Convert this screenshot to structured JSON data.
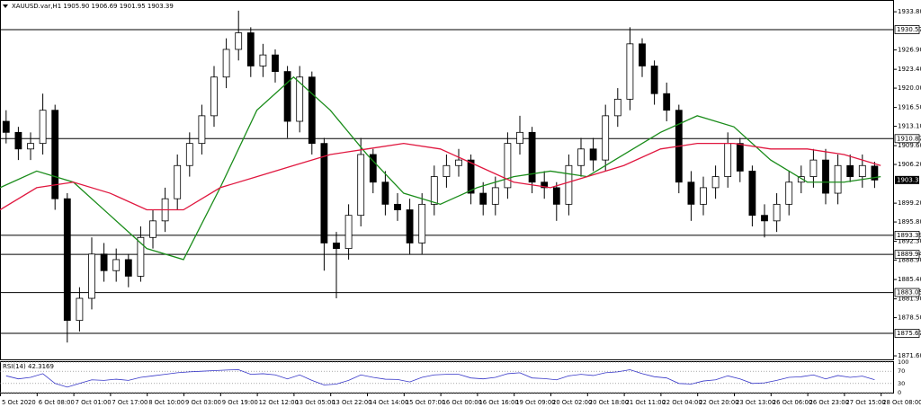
{
  "chart_data": {
    "type": "candlestick",
    "header": "XAUUSD.var,H1 1905.90 1906.69 1901.95 1903.39",
    "up_color": "#ffffff",
    "down_color": "#000000",
    "open": [
      1914,
      1912,
      1909,
      1910,
      1916,
      1900,
      1878,
      1882,
      1890,
      1887,
      1889,
      1886,
      1893,
      1896,
      1900,
      1906,
      1910,
      1915,
      1922,
      1927,
      1930,
      1924,
      1926,
      1923,
      1914,
      1922,
      1910,
      1892,
      1891,
      1897,
      1908,
      1903,
      1899,
      1898,
      1892,
      1899,
      1904,
      1906,
      1907,
      1901,
      1899,
      1902,
      1910,
      1912,
      1903,
      1902,
      1899,
      1906,
      1909,
      1907,
      1915,
      1918,
      1928,
      1924,
      1919,
      1916,
      1903,
      1899,
      1902,
      1904,
      1910,
      1905,
      1897,
      1896,
      1899,
      1903,
      1904,
      1907,
      1901,
      1906,
      1904,
      1905.9
    ],
    "high": [
      1916,
      1913,
      1912,
      1919,
      1917,
      1901,
      1884,
      1893,
      1892,
      1891,
      1890,
      1895,
      1898,
      1902,
      1908,
      1912,
      1917,
      1924,
      1929,
      1934,
      1931,
      1928,
      1927,
      1924,
      1924,
      1923,
      1911,
      1894,
      1899,
      1911,
      1909,
      1905,
      1901,
      1900,
      1901,
      1906,
      1908,
      1909,
      1908,
      1903,
      1904,
      1912,
      1915,
      1913,
      1905,
      1903,
      1908,
      1911,
      1911,
      1917,
      1920,
      1931,
      1929,
      1925,
      1921,
      1917,
      1905,
      1904,
      1906,
      1912,
      1911,
      1906,
      1899,
      1901,
      1905,
      1906,
      1909,
      1909,
      1908,
      1908,
      1908,
      1906.69
    ],
    "low": [
      1910,
      1907,
      1907,
      1908,
      1898,
      1874,
      1876,
      1880,
      1885,
      1885,
      1884,
      1885,
      1891,
      1894,
      1898,
      1904,
      1908,
      1913,
      1920,
      1925,
      1922,
      1922,
      1921,
      1911,
      1912,
      1908,
      1887,
      1882,
      1889,
      1895,
      1901,
      1897,
      1896,
      1890,
      1890,
      1897,
      1902,
      1904,
      1899,
      1897,
      1897,
      1900,
      1908,
      1901,
      1900,
      1896,
      1897,
      1904,
      1905,
      1905,
      1913,
      1916,
      1922,
      1917,
      1914,
      1901,
      1896,
      1897,
      1900,
      1902,
      1903,
      1895,
      1893,
      1894,
      1897,
      1901,
      1902,
      1899,
      1899,
      1903,
      1902,
      1901.95
    ],
    "close": [
      1912,
      1909,
      1910,
      1916,
      1900,
      1878,
      1882,
      1890,
      1887,
      1889,
      1886,
      1893,
      1896,
      1900,
      1906,
      1910,
      1915,
      1922,
      1927,
      1930,
      1924,
      1926,
      1923,
      1914,
      1922,
      1910,
      1892,
      1891,
      1897,
      1908,
      1903,
      1899,
      1898,
      1892,
      1899,
      1904,
      1906,
      1907,
      1901,
      1899,
      1902,
      1910,
      1912,
      1903,
      1902,
      1899,
      1906,
      1909,
      1907,
      1915,
      1918,
      1928,
      1924,
      1919,
      1916,
      1903,
      1899,
      1902,
      1904,
      1910,
      1905,
      1897,
      1896,
      1899,
      1903,
      1904,
      1907,
      1901,
      1906,
      1904,
      1906,
      1903.39
    ],
    "x_labels": [
      "5 Oct 2020",
      "6 Oct 08:00",
      "7 Oct 01:00",
      "7 Oct 17:00",
      "8 Oct 10:00",
      "9 Oct 03:00",
      "9 Oct 19:00",
      "12 Oct 12:00",
      "13 Oct 05:00",
      "13 Oct 22:00",
      "14 Oct 14:00",
      "15 Oct 07:00",
      "16 Oct 00:00",
      "16 Oct 16:00",
      "19 Oct 09:00",
      "20 Oct 02:00",
      "20 Oct 18:00",
      "21 Oct 11:00",
      "22 Oct 04:00",
      "22 Oct 20:00",
      "23 Oct 13:00",
      "26 Oct 06:00",
      "26 Oct 23:00",
      "27 Oct 15:00",
      "28 Oct 08:00"
    ],
    "series": [
      {
        "color": "#1a8c1a",
        "values": [
          1902,
          1905,
          1903,
          1897,
          1891,
          1889,
          1902,
          1916,
          1922,
          1916,
          1908,
          1901,
          1899,
          1902,
          1904,
          1905,
          1904,
          1908,
          1912,
          1915,
          1913,
          1907,
          1903,
          1903,
          1904
        ]
      },
      {
        "color": "#e0173f",
        "values": [
          1898,
          1902,
          1903,
          1901,
          1898,
          1898,
          1902,
          1904,
          1906,
          1908,
          1909,
          1910,
          1909,
          1906,
          1903,
          1902,
          1904,
          1906,
          1909,
          1910,
          1910,
          1909,
          1909,
          1908,
          1906
        ]
      }
    ],
    "levels": [
      1930.57,
      1910.87,
      1893.39,
      1889.94,
      1883.05,
      1875.67
    ],
    "level_color": "#000000",
    "ylim": [
      1870.96,
      1935.93
    ],
    "yticks": [
      {
        "value": 1933.8,
        "label": "1933.80"
      },
      {
        "value": 1926.9,
        "label": "1926.90"
      },
      {
        "value": 1923.4,
        "label": "1923.40"
      },
      {
        "value": 1920,
        "label": "1920.00"
      },
      {
        "value": 1916.5,
        "label": "1916.50"
      },
      {
        "value": 1913.1,
        "label": "1913.10"
      },
      {
        "value": 1909.6,
        "label": "1909.60"
      },
      {
        "value": 1906.2,
        "label": "1906.20"
      },
      {
        "value": 1899.2,
        "label": "1899.20"
      },
      {
        "value": 1895.8,
        "label": "1895.80"
      },
      {
        "value": 1892.3,
        "label": "1892.30"
      },
      {
        "value": 1888.9,
        "label": "1888.90"
      },
      {
        "value": 1885.4,
        "label": "1885.40"
      },
      {
        "value": 1881.9,
        "label": "1881.90"
      },
      {
        "value": 1878.5,
        "label": "1878.50"
      },
      {
        "value": 1871.6,
        "label": "1871.60"
      }
    ],
    "grid": false,
    "rsi": {
      "name": "RSI(14)",
      "color": "#3636c8",
      "values": [
        55,
        45,
        50,
        62,
        30,
        18,
        30,
        42,
        40,
        44,
        40,
        50,
        55,
        60,
        65,
        68,
        70,
        72,
        74,
        75,
        60,
        62,
        58,
        45,
        58,
        40,
        25,
        28,
        40,
        58,
        50,
        44,
        43,
        35,
        50,
        58,
        60,
        60,
        48,
        45,
        50,
        62,
        65,
        48,
        46,
        42,
        55,
        60,
        56,
        65,
        68,
        75,
        62,
        52,
        48,
        30,
        28,
        38,
        42,
        55,
        45,
        30,
        32,
        40,
        50,
        52,
        58,
        45,
        56,
        50,
        54,
        42.3169
      ],
      "ylim": [
        0,
        100
      ],
      "yticks": [
        100,
        70,
        30,
        0
      ]
    }
  }
}
